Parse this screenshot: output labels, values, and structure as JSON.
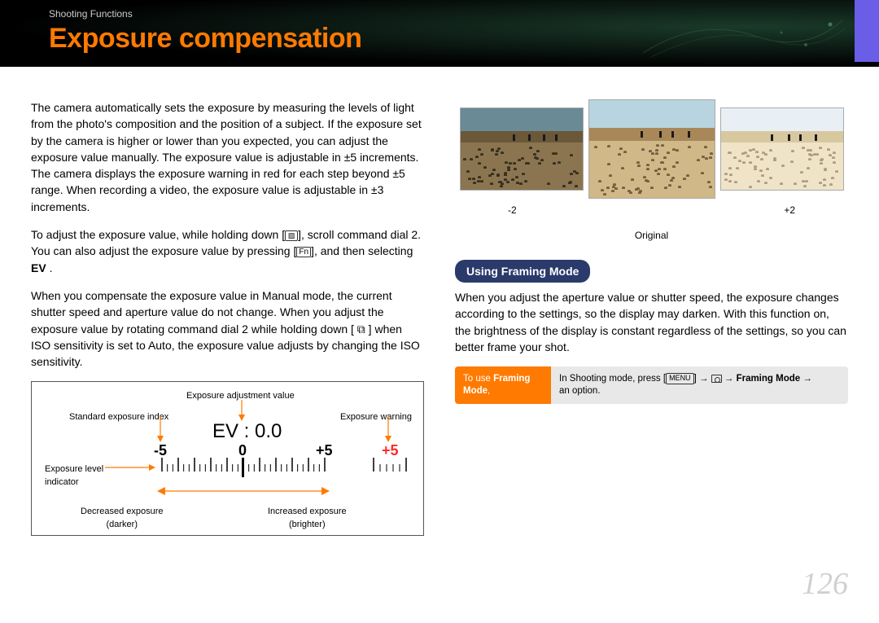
{
  "header": {
    "breadcrumb": "Shooting Functions",
    "title": "Exposure compensation",
    "band_gradient_colors": [
      "#1a3a2a",
      "#0a1510",
      "#000000"
    ],
    "accent_tab_color": "#6a5de8",
    "title_color": "#ff7a00"
  },
  "left_column": {
    "para1": "The camera automatically sets the exposure by measuring the levels of light from the photo's composition and the position of a subject. If the exposure set by the camera is higher or lower than you expected, you can adjust the exposure value manually. The exposure value is adjustable in ±5 increments. The camera displays the exposure warning in red for each step beyond ±5 range. When recording a video, the exposure value is adjustable in ±3 increments.",
    "para2_pre": "To adjust the exposure value, while holding down ",
    "para2_mid1": ", scroll command dial 2. You can also adjust the exposure value by pressing ",
    "para2_mid2": ", and then selecting ",
    "para2_ev": "EV",
    "para2_end": " .",
    "fn_label": "Fn",
    "ev_icon_glyph": "⧉",
    "para3": "When you compensate the exposure value in Manual mode, the current shutter speed and aperture value do not change. When you adjust the exposure value by rotating command dial 2 while holding down [ ⧉ ] when ISO sensitivity is set to Auto, the exposure value adjusts by changing the ISO sensitivity."
  },
  "diagram": {
    "label_adjustment": "Exposure adjustment value",
    "label_standard": "Standard exposure index",
    "label_warning": "Exposure warning",
    "label_indicator_line1": "Exposure level",
    "label_indicator_line2": "indicator",
    "label_decreased_line1": "Decreased exposure",
    "label_decreased_line2": "(darker)",
    "label_increased_line1": "Increased exposure",
    "label_increased_line2": "(brighter)",
    "ev_display": "EV : 0.0",
    "scale_min": "-5",
    "scale_zero": "0",
    "scale_max": "+5",
    "scale_warning": "+5",
    "tick_major_count": 11,
    "tick_minor_per_major": 2,
    "warning_ticks": 6,
    "current_pointer_position": 0,
    "arrow_color": "#ff7a00",
    "warning_color": "#ff2a2a",
    "text_color": "#000000"
  },
  "right_column": {
    "photos": {
      "minus_label": "-2",
      "plus_label": "+2",
      "center_label": "Original",
      "minus": {
        "sky": "#6a8a95",
        "sand_far": "#6a5838",
        "sand": "#8a7550",
        "bird": "#3a3020"
      },
      "center": {
        "sky": "#b8d4e0",
        "sand_far": "#a88858",
        "sand": "#d0b888",
        "bird": "#786040"
      },
      "plus": {
        "sky": "#e8f0f5",
        "sand_far": "#d8c8a0",
        "sand": "#f0e4c8",
        "bird": "#b0a080"
      }
    },
    "pill_label": "Using Framing Mode",
    "pill_color": "#2a3a6a",
    "framing_para": "When you adjust the aperture value or shutter speed, the exposure changes according to the settings, so the display may darken. With this function on, the brightness of the display is constant regardless of the settings, so you can better frame your shot.",
    "instruction": {
      "left_pre": "To use ",
      "left_bold": "Framing Mode",
      "left_post": ",",
      "left_bg": "#ff7a00",
      "right_bg": "#e8e8e8",
      "right_pre": "In Shooting mode, press ",
      "menu_label": "MENU",
      "arrow": "→",
      "right_bold": "Framing Mode",
      "right_post": " an option."
    }
  },
  "page_number": "126"
}
